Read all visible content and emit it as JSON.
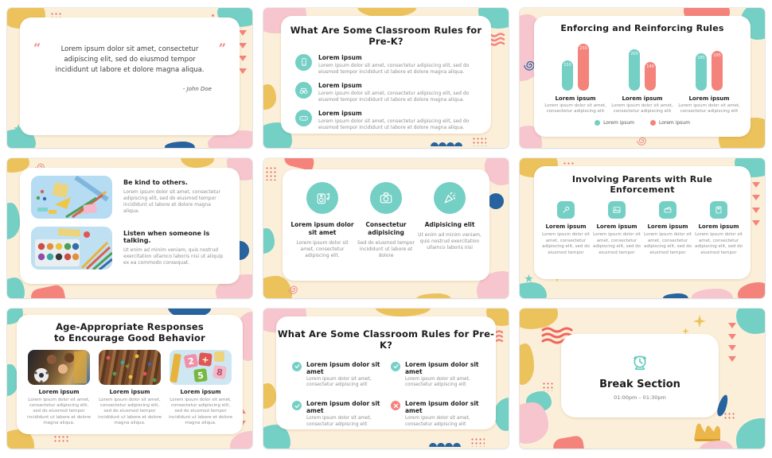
{
  "theme": {
    "cream": "#fcefd9",
    "teal": "#74cfc5",
    "coral": "#f4837c",
    "yellow": "#ecc25c",
    "pink": "#f6c5cd",
    "navy": "#27639f",
    "title_color": "#1c1c1e",
    "body_color": "#8f8f8f"
  },
  "slides": {
    "quote": {
      "open_quote": "“",
      "close_quote": "”",
      "text": "Lorem ipsum dolor sit amet, consectetur adipiscing elit, sed do eiusmod tempor incididunt ut labore et dolore magna aliqua.",
      "attribution": "- John Doe"
    },
    "rules": {
      "title": "What Are Some Classroom Rules for Pre-K?",
      "items": [
        {
          "icon": "phone-icon",
          "title": "Lorem ipsum",
          "body": "Lorem ipsum dolor sit amet, consectetur adipiscing elit, sed do eiusmod tempor incididunt ut labore et dolore magna aliqua."
        },
        {
          "icon": "binoculars-icon",
          "title": "Lorem ipsum",
          "body": "Lorem ipsum dolor sit amet, consectetur adipiscing elit, sed do eiusmod tempor incididunt ut labore et dolore magna aliqua."
        },
        {
          "icon": "game-console-icon",
          "title": "Lorem ipsum",
          "body": "Lorem ipsum dolor sit amet, consectetur adipiscing elit, sed do eiusmod tempor incididunt ut labore et dolore magna aliqua."
        }
      ]
    },
    "enforcing": {
      "title": "Enforcing and Reinforcing Rules",
      "groups": [
        {
          "label": "Lorem ipsum",
          "caption": "Lorem ipsum dolor sit amet, consectetur adipiscing elit"
        },
        {
          "label": "Lorem ipsum",
          "caption": "Lorem ipsum dolor sit amet, consectetur adipiscing elit"
        },
        {
          "label": "Lorem ipsum",
          "caption": "Lorem ipsum dolor sit amet, consectetur adipiscing elit"
        }
      ]
    },
    "kindness": {
      "items": [
        {
          "image": "school-supplies-photo",
          "title": "Be kind to others.",
          "body": "Lorem ipsum dolor sit amet, consectetur adipiscing elit, sed do eiusmod tempor incididunt ut labore et dolore magna aliqua."
        },
        {
          "image": "art-supplies-photo",
          "title": "Listen when someone is talking.",
          "body": "Ut enim ad minim veniam, quis nostrud exercitation ullamco laboris nisi ut aliquip ex ea commodo consequat."
        }
      ]
    },
    "circles": {
      "items": [
        {
          "icon": "boombox-icon",
          "title": "Lorem ipsum dolor sit amet",
          "body": "Lorem ipsum dolor sit amet, consectetur adipiscing elit."
        },
        {
          "icon": "camera-icon",
          "title": "Consectetur adipisicing",
          "body": "Sed do eiusmod tempor incididunt ut labore et dolore"
        },
        {
          "icon": "party-popper-icon",
          "title": "Adipisicing elit",
          "body": "Ut enim ad minim veniam, quis nostrud exercitation ullamco laboris nisi"
        }
      ]
    },
    "parents": {
      "title": "Involving Parents with Rule Enforcement",
      "items": [
        {
          "icon": "microphone-icon",
          "title": "Lorem ipsum",
          "body": "Lorem ipsum dolor sit amet, consectetur adipiscing elit, sed do eiusmod tempor"
        },
        {
          "icon": "photo-icon",
          "title": "Lorem ipsum",
          "body": "Lorem ipsum dolor sit amet, consectetur adipiscing elit, sed do eiusmod tempor"
        },
        {
          "icon": "clapperboard-icon",
          "title": "Lorem ipsum",
          "body": "Lorem ipsum dolor sit amet, consectetur adipiscing elit, sed do eiusmod tempor"
        },
        {
          "icon": "book-icon",
          "title": "Lorem ipsum",
          "body": "Lorem ipsum dolor sit amet, consectetur adipiscing elit, sed do eiusmod tempor"
        }
      ]
    },
    "age": {
      "title": "Age-Appropriate Responses to Encourage Good Behavior",
      "photo_glyphs": [
        "2",
        "+",
        "5",
        "8"
      ],
      "items": [
        {
          "image": "kids-playing-photo",
          "title": "Lorem ipsum",
          "body": "Lorem ipsum dolor sit amet, consectetur adipiscing elit, sed do eiusmod tempor incididunt ut labore et dolore magna aliqua."
        },
        {
          "image": "colored-pencils-photo",
          "title": "Lorem ipsum",
          "body": "Lorem ipsum dolor sit amet, consectetur adipiscing elit, sed do eiusmod tempor incididunt ut labore et dolore magna aliqua."
        },
        {
          "image": "number-toys-photo",
          "title": "Lorem ipsum",
          "body": "Lorem ipsum dolor sit amet, consectetur adipiscing elit, sed do eiusmod tempor incididunt ut labore et dolore magna aliqua."
        }
      ]
    },
    "checklist": {
      "title": "What Are Some Classroom Rules for Pre-K?",
      "items": [
        {
          "status": "check",
          "title": "Lorem ipsum dolor sit amet",
          "body": "Lorem ipsum dolor sit amet, consectetur adipiscing elit"
        },
        {
          "status": "check",
          "title": "Lorem ipsum dolor sit amet",
          "body": "Lorem ipsum dolor sit amet, consectetur adipiscing elit"
        },
        {
          "status": "check",
          "title": "Lorem ipsum dolor sit amet",
          "body": "Lorem ipsum dolor sit amet, consectetur adipiscing elit"
        },
        {
          "status": "cross",
          "title": "Lorem ipsum dolor sit amet",
          "body": "Lorem ipsum dolor sit amet, consectetur adipiscing elit"
        }
      ]
    },
    "break": {
      "title": "Break Section",
      "time": "01:00pm – 01:30pm"
    }
  },
  "chart_data": {
    "type": "bar",
    "title": "Enforcing and Reinforcing Rules",
    "categories": [
      "Lorem ipsum",
      "Lorem ipsum",
      "Lorem ipsum"
    ],
    "series": [
      {
        "name": "Lorem ipsum",
        "color": "#74cfc5",
        "values": [
          150,
          205,
          185
        ]
      },
      {
        "name": "Lorem ipsum",
        "color": "#f4837c",
        "values": [
          230,
          140,
          195
        ]
      }
    ],
    "ylim": [
      0,
      250
    ],
    "grid": false,
    "legend_position": "bottom",
    "value_labels": true
  }
}
